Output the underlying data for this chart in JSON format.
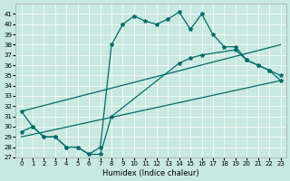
{
  "bg_color": "#c8e8e0",
  "line_color": "#006b6b",
  "xlabel": "Humidex (Indice chaleur)",
  "xlim": [
    -0.5,
    23.5
  ],
  "ylim": [
    27,
    42
  ],
  "xticks": [
    0,
    1,
    2,
    3,
    4,
    5,
    6,
    7,
    8,
    9,
    10,
    11,
    12,
    13,
    14,
    15,
    16,
    17,
    18,
    19,
    20,
    21,
    22,
    23
  ],
  "yticks": [
    27,
    28,
    29,
    30,
    31,
    32,
    33,
    34,
    35,
    36,
    37,
    38,
    39,
    40,
    41
  ],
  "curve1_x": [
    0,
    1,
    2,
    3,
    4,
    5,
    6,
    7,
    8,
    9,
    10,
    11,
    12,
    13,
    14,
    15,
    16,
    17,
    18,
    19,
    20,
    21,
    22,
    23
  ],
  "curve1_y": [
    31.5,
    30.0,
    29.0,
    29.0,
    28.0,
    28.0,
    27.3,
    28.0,
    38.0,
    40.0,
    40.8,
    40.3,
    40.0,
    40.5,
    41.2,
    39.5,
    41.0,
    39.0,
    37.8,
    37.8,
    36.5,
    36.0,
    35.5,
    35.0
  ],
  "curve2_x": [
    0,
    23
  ],
  "curve2_y": [
    29.0,
    34.5
  ],
  "curve3_x": [
    0,
    23
  ],
  "curve3_y": [
    31.5,
    38.0
  ],
  "curve4_x": [
    0,
    1,
    2,
    3,
    4,
    5,
    6,
    7,
    8,
    14,
    15,
    16,
    19,
    20,
    21,
    22,
    23
  ],
  "curve4_y": [
    29.5,
    30.0,
    29.0,
    29.0,
    28.0,
    28.0,
    27.3,
    27.3,
    31.0,
    36.2,
    36.7,
    37.0,
    37.5,
    36.5,
    36.0,
    35.5,
    34.5
  ]
}
